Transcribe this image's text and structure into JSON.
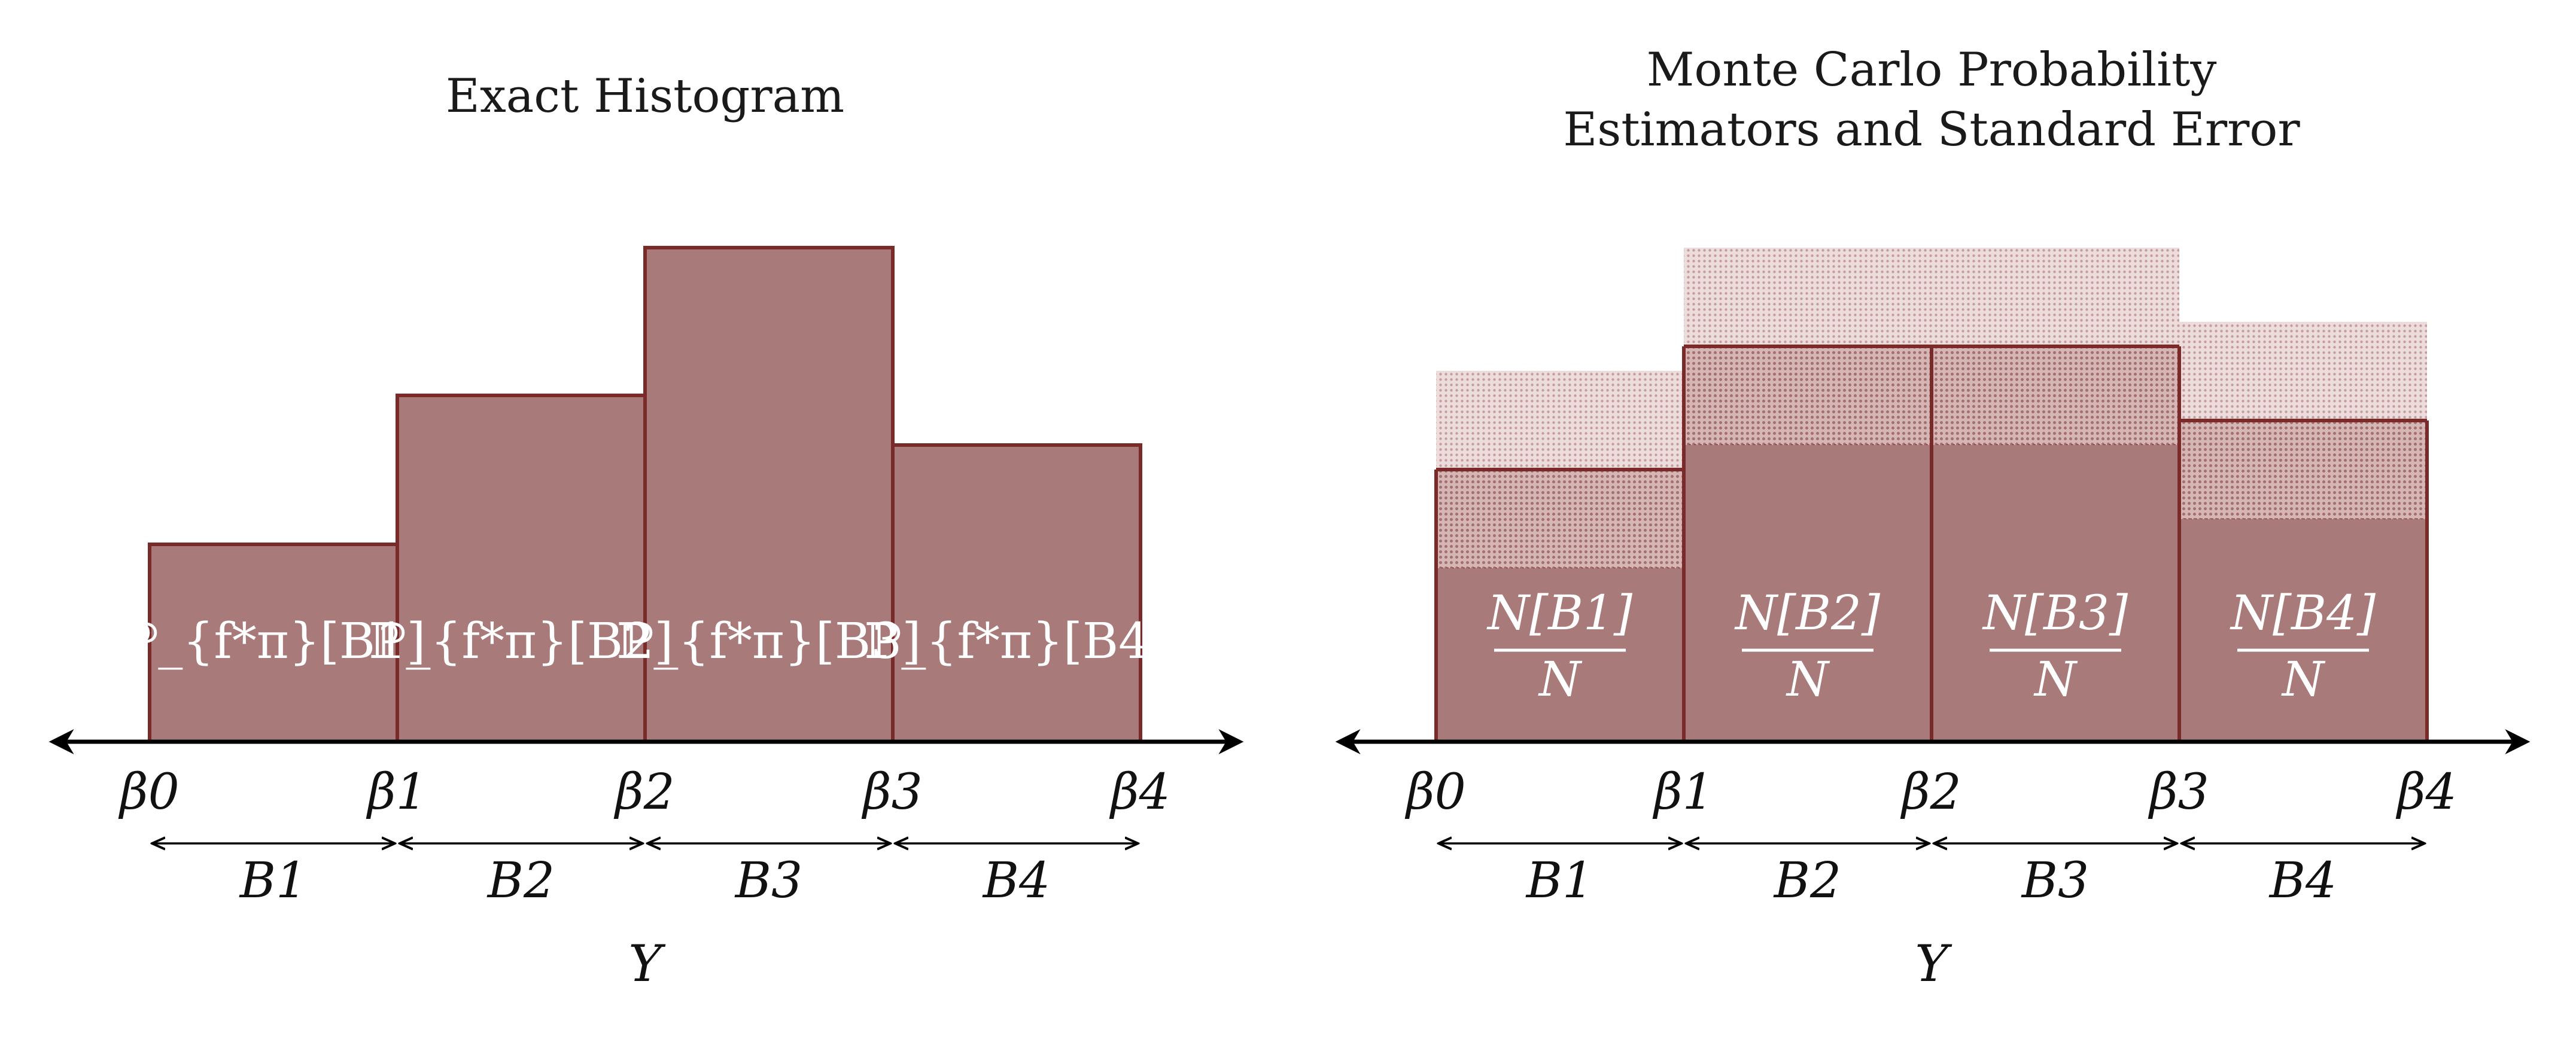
{
  "left_panel": {
    "title": "Exact Histogram",
    "bins": [
      "B1",
      "B2",
      "B3",
      "B4"
    ],
    "bin_labels": [
      "ℙ_{f*π}[B1]",
      "ℙ_{f*π}[B2]",
      "ℙ_{f*π}[B3]",
      "ℙ_{f*π}[B4]"
    ],
    "boundaries": [
      "β0",
      "β1",
      "β2",
      "β3",
      "β4"
    ],
    "axis_label": "Y",
    "values": [
      0.4,
      0.7,
      1.0,
      0.6
    ]
  },
  "right_panel": {
    "title_line1": "Monte Carlo Probability",
    "title_line2": "Estimators and Standard Error",
    "bins": [
      "B1",
      "B2",
      "B3",
      "B4"
    ],
    "bin_labels": [
      {
        "numerator": "N[B1]",
        "denominator": "N"
      },
      {
        "numerator": "N[B2]",
        "denominator": "N"
      },
      {
        "numerator": "N[B3]",
        "denominator": "N"
      },
      {
        "numerator": "N[B4]",
        "denominator": "N"
      }
    ],
    "boundaries": [
      "β0",
      "β1",
      "β2",
      "β3",
      "β4"
    ],
    "axis_label": "Y",
    "estimates": [
      0.35,
      0.6,
      0.6,
      0.45
    ],
    "inner_upper": [
      0.55,
      0.8,
      0.8,
      0.65
    ],
    "outer_upper": [
      0.75,
      1.0,
      1.0,
      0.85
    ]
  },
  "colors": {
    "bar_fill": "#a87b7a",
    "bar_stroke": "#7b2a2a",
    "axis": "#000000"
  }
}
